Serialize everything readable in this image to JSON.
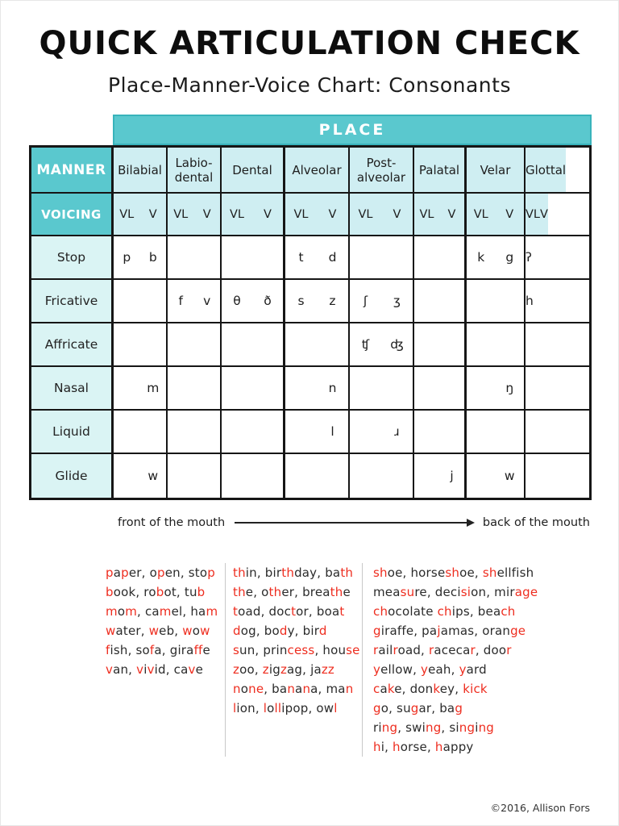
{
  "title": "QUICK ARTICULATION CHECK",
  "subtitle": "Place-Manner-Voice Chart: Consonants",
  "colors": {
    "header_teal": "#5ac8ce",
    "cell_teal": "#cfeef2",
    "label_teal": "#daf4f4",
    "highlight_red": "#ee2d1f",
    "border_black": "#161616"
  },
  "table": {
    "place_label": "PLACE",
    "manner_label": "MANNER",
    "voicing_label": "VOICING",
    "vl_label": "VL",
    "v_label": "V",
    "places": [
      "Bilabial",
      "Labio-\ndental",
      "Dental",
      "Alveolar",
      "Post-\nalveolar",
      "Palatal",
      "Velar",
      "Glottal"
    ],
    "rows": [
      {
        "label": "Stop",
        "cells": [
          [
            "p",
            "b"
          ],
          [
            "",
            ""
          ],
          [
            "",
            ""
          ],
          [
            "t",
            "d"
          ],
          [
            "",
            ""
          ],
          [
            "",
            ""
          ],
          [
            "k",
            "g"
          ],
          [
            "ʔ",
            ""
          ]
        ]
      },
      {
        "label": "Fricative",
        "cells": [
          [
            "",
            ""
          ],
          [
            "f",
            "v"
          ],
          [
            "θ",
            "ð"
          ],
          [
            "s",
            "z"
          ],
          [
            "ʃ",
            "ʒ"
          ],
          [
            "",
            ""
          ],
          [
            "",
            ""
          ],
          [
            "h",
            ""
          ]
        ]
      },
      {
        "label": "Affricate",
        "cells": [
          [
            "",
            ""
          ],
          [
            "",
            ""
          ],
          [
            "",
            ""
          ],
          [
            "",
            ""
          ],
          [
            "ʧ",
            "ʤ"
          ],
          [
            "",
            ""
          ],
          [
            "",
            ""
          ],
          [
            "",
            ""
          ]
        ]
      },
      {
        "label": "Nasal",
        "cells": [
          [
            "",
            "m"
          ],
          [
            "",
            ""
          ],
          [
            "",
            ""
          ],
          [
            "",
            "n"
          ],
          [
            "",
            ""
          ],
          [
            "",
            ""
          ],
          [
            "",
            "ŋ"
          ],
          [
            "",
            ""
          ]
        ]
      },
      {
        "label": "Liquid",
        "cells": [
          [
            "",
            ""
          ],
          [
            "",
            ""
          ],
          [
            "",
            ""
          ],
          [
            "",
            "l"
          ],
          [
            "",
            "ɹ"
          ],
          [
            "",
            ""
          ],
          [
            "",
            ""
          ],
          [
            "",
            ""
          ]
        ]
      },
      {
        "label": "Glide",
        "cells": [
          [
            "",
            "w"
          ],
          [
            "",
            ""
          ],
          [
            "",
            ""
          ],
          [
            "",
            ""
          ],
          [
            "",
            ""
          ],
          [
            "",
            "j"
          ],
          [
            "",
            "w"
          ],
          [
            "",
            ""
          ]
        ]
      }
    ]
  },
  "arrow": {
    "left": "front of the mouth",
    "right": "back of the mouth"
  },
  "word_lists": {
    "columns": [
      {
        "lines": [
          [
            [
              "p",
              "r"
            ],
            [
              "a",
              "k"
            ],
            [
              "p",
              "r"
            ],
            [
              "er, o",
              "k"
            ],
            [
              "p",
              "r"
            ],
            [
              "en, sto",
              "k"
            ],
            [
              "p",
              "r"
            ]
          ],
          [
            [
              "b",
              "r"
            ],
            [
              "ook, ro",
              "k"
            ],
            [
              "b",
              "r"
            ],
            [
              "ot, tu",
              "k"
            ],
            [
              "b",
              "r"
            ]
          ],
          [
            [
              "m",
              "r"
            ],
            [
              "o",
              "k"
            ],
            [
              "m",
              "r"
            ],
            [
              ", ca",
              "k"
            ],
            [
              "m",
              "r"
            ],
            [
              "el, ha",
              "k"
            ],
            [
              "m",
              "r"
            ]
          ],
          [
            [
              "w",
              "r"
            ],
            [
              "ater, ",
              "k"
            ],
            [
              "w",
              "r"
            ],
            [
              "eb, ",
              "k"
            ],
            [
              "w",
              "r"
            ],
            [
              "o",
              "k"
            ],
            [
              "w",
              "r"
            ]
          ],
          [
            [
              "f",
              "r"
            ],
            [
              "ish, so",
              "k"
            ],
            [
              "f",
              "r"
            ],
            [
              "a, gira",
              "k"
            ],
            [
              "ff",
              "r"
            ],
            [
              "e",
              "k"
            ]
          ],
          [
            [
              "v",
              "r"
            ],
            [
              "an, ",
              "k"
            ],
            [
              "v",
              "r"
            ],
            [
              "i",
              "k"
            ],
            [
              "v",
              "r"
            ],
            [
              "id, ca",
              "k"
            ],
            [
              "v",
              "r"
            ],
            [
              "e",
              "k"
            ]
          ]
        ]
      },
      {
        "lines": [
          [
            [
              "th",
              "r"
            ],
            [
              "in, bir",
              "k"
            ],
            [
              "th",
              "r"
            ],
            [
              "day, ba",
              "k"
            ],
            [
              "th",
              "r"
            ]
          ],
          [
            [
              "th",
              "r"
            ],
            [
              "e, o",
              "k"
            ],
            [
              "th",
              "r"
            ],
            [
              "er, brea",
              "k"
            ],
            [
              "th",
              "r"
            ],
            [
              "e",
              "k"
            ]
          ],
          [
            [
              "t",
              "r"
            ],
            [
              "oad, doc",
              "k"
            ],
            [
              "t",
              "r"
            ],
            [
              "or, boa",
              "k"
            ],
            [
              "t",
              "r"
            ]
          ],
          [
            [
              "d",
              "r"
            ],
            [
              "og, bo",
              "k"
            ],
            [
              "d",
              "r"
            ],
            [
              "y, bir",
              "k"
            ],
            [
              "d",
              "r"
            ]
          ],
          [
            [
              "s",
              "r"
            ],
            [
              "un, prin",
              "k"
            ],
            [
              "cess",
              "r"
            ],
            [
              ", hou",
              "k"
            ],
            [
              "se",
              "r"
            ]
          ],
          [
            [
              "z",
              "r"
            ],
            [
              "oo, ",
              "k"
            ],
            [
              "z",
              "r"
            ],
            [
              "ig",
              "k"
            ],
            [
              "z",
              "r"
            ],
            [
              "ag, ja",
              "k"
            ],
            [
              "zz",
              "r"
            ]
          ],
          [
            [
              "n",
              "r"
            ],
            [
              "o",
              "k"
            ],
            [
              "ne",
              "r"
            ],
            [
              ", ba",
              "k"
            ],
            [
              "n",
              "r"
            ],
            [
              "a",
              "k"
            ],
            [
              "n",
              "r"
            ],
            [
              "a, ma",
              "k"
            ],
            [
              "n",
              "r"
            ]
          ],
          [
            [
              "l",
              "r"
            ],
            [
              "ion, ",
              "k"
            ],
            [
              "l",
              "r"
            ],
            [
              "o",
              "k"
            ],
            [
              "ll",
              "r"
            ],
            [
              "ipop, ow",
              "k"
            ],
            [
              "l",
              "r"
            ]
          ]
        ]
      },
      {
        "lines": [
          [
            [
              "sh",
              "r"
            ],
            [
              "oe, horse",
              "k"
            ],
            [
              "sh",
              "r"
            ],
            [
              "oe, ",
              "k"
            ],
            [
              "sh",
              "r"
            ],
            [
              "ellfish",
              "k"
            ]
          ],
          [
            [
              "mea",
              "k"
            ],
            [
              "su",
              "r"
            ],
            [
              "re, deci",
              "k"
            ],
            [
              "si",
              "r"
            ],
            [
              "on, mir",
              "k"
            ],
            [
              "age",
              "r"
            ]
          ],
          [
            [
              "ch",
              "r"
            ],
            [
              "ocolate ",
              "k"
            ],
            [
              "ch",
              "r"
            ],
            [
              "ips, bea",
              "k"
            ],
            [
              "ch",
              "r"
            ]
          ],
          [
            [
              "g",
              "r"
            ],
            [
              "iraffe, pa",
              "k"
            ],
            [
              "j",
              "r"
            ],
            [
              "amas, oran",
              "k"
            ],
            [
              "ge",
              "r"
            ]
          ],
          [
            [
              "r",
              "r"
            ],
            [
              "ail",
              "k"
            ],
            [
              "r",
              "r"
            ],
            [
              "oad, ",
              "k"
            ],
            [
              "r",
              "r"
            ],
            [
              "aceca",
              "k"
            ],
            [
              "r",
              "r"
            ],
            [
              ", doo",
              "k"
            ],
            [
              "r",
              "r"
            ]
          ],
          [
            [
              "y",
              "r"
            ],
            [
              "ellow, ",
              "k"
            ],
            [
              "y",
              "r"
            ],
            [
              "eah, ",
              "k"
            ],
            [
              "y",
              "r"
            ],
            [
              "ard",
              "k"
            ]
          ],
          [
            [
              "c",
              "r"
            ],
            [
              "a",
              "k"
            ],
            [
              "k",
              "r"
            ],
            [
              "e, don",
              "k"
            ],
            [
              "k",
              "r"
            ],
            [
              "ey, ",
              "k"
            ],
            [
              "kick",
              "r"
            ]
          ],
          [
            [
              "g",
              "r"
            ],
            [
              "o, su",
              "k"
            ],
            [
              "g",
              "r"
            ],
            [
              "ar, ba",
              "k"
            ],
            [
              "g",
              "r"
            ]
          ],
          [
            [
              "ri",
              "k"
            ],
            [
              "ng",
              "r"
            ],
            [
              ", swi",
              "k"
            ],
            [
              "ng",
              "r"
            ],
            [
              ", si",
              "k"
            ],
            [
              "ng",
              "r"
            ],
            [
              "i",
              "k"
            ],
            [
              "ng",
              "r"
            ]
          ],
          [
            [
              "h",
              "r"
            ],
            [
              "i, ",
              "k"
            ],
            [
              "h",
              "r"
            ],
            [
              "orse, ",
              "k"
            ],
            [
              "h",
              "r"
            ],
            [
              "appy",
              "k"
            ]
          ]
        ]
      }
    ]
  },
  "footer": "©2016, Allison Fors"
}
